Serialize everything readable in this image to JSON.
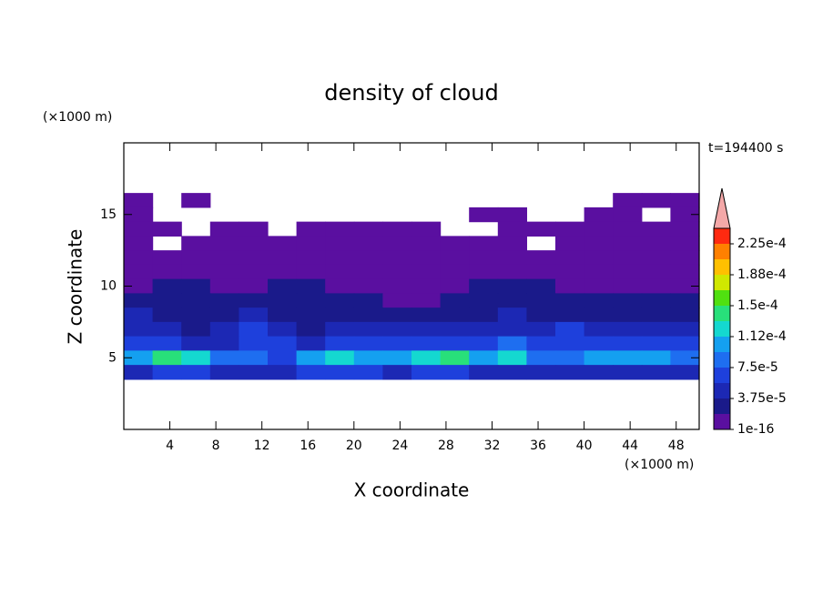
{
  "chart_data": {
    "type": "contour",
    "title": "density of cloud",
    "x_label": "X coordinate",
    "y_label": "Z coordinate",
    "x_unit": "(×1000 m)",
    "y_unit": "(×1000 m)",
    "time_label": "t=194400 s",
    "xlim": [
      0,
      50
    ],
    "ylim": [
      0,
      20
    ],
    "xticks": [
      4,
      8,
      12,
      16,
      20,
      24,
      28,
      32,
      36,
      40,
      44,
      48
    ],
    "yticks": [
      5,
      10,
      15
    ],
    "x": [
      1.25,
      3.75,
      6.25,
      8.75,
      11.25,
      13.75,
      16.25,
      18.75,
      21.25,
      23.75,
      26.25,
      28.75,
      31.25,
      33.75,
      36.25,
      38.75,
      41.25,
      43.75,
      46.25,
      48.75
    ],
    "z": [
      16,
      15,
      14,
      13,
      12,
      11,
      10,
      9,
      8,
      7,
      6,
      5,
      4
    ],
    "values": [
      [
        1e-05,
        null,
        1e-05,
        null,
        null,
        null,
        null,
        null,
        null,
        null,
        null,
        null,
        null,
        null,
        null,
        null,
        null,
        1e-05,
        1e-05,
        1e-05
      ],
      [
        1e-05,
        null,
        null,
        null,
        null,
        null,
        null,
        null,
        null,
        null,
        null,
        null,
        1e-05,
        1e-05,
        null,
        null,
        1e-05,
        1e-05,
        null,
        1e-05
      ],
      [
        1e-05,
        1e-05,
        null,
        1e-05,
        1e-05,
        null,
        1e-05,
        1e-05,
        1e-05,
        1e-05,
        1e-05,
        null,
        null,
        1e-05,
        1e-05,
        1e-05,
        1e-05,
        1e-05,
        1e-05,
        1e-05
      ],
      [
        1e-05,
        null,
        1e-05,
        1e-05,
        1e-05,
        1e-05,
        1e-05,
        1e-05,
        1e-05,
        1e-05,
        1e-05,
        1e-05,
        1e-05,
        1e-05,
        null,
        1e-05,
        1e-05,
        1e-05,
        1e-05,
        1e-05
      ],
      [
        1e-05,
        1e-05,
        1e-05,
        1e-05,
        1e-05,
        1e-05,
        1e-05,
        1e-05,
        1e-05,
        1e-05,
        1e-05,
        1e-05,
        1e-05,
        1e-05,
        1e-05,
        1e-05,
        1e-05,
        1e-05,
        1e-05,
        1e-05
      ],
      [
        1e-05,
        1e-05,
        1e-05,
        1e-05,
        1e-05,
        1e-05,
        1e-05,
        1e-05,
        1e-05,
        1e-05,
        1e-05,
        1e-05,
        1e-05,
        1e-05,
        1e-05,
        1e-05,
        1e-05,
        1e-05,
        1e-05,
        1e-05
      ],
      [
        1e-05,
        3e-05,
        3e-05,
        1e-05,
        1e-05,
        3e-05,
        3e-05,
        1e-05,
        1e-05,
        1e-05,
        1e-05,
        1e-05,
        3e-05,
        3e-05,
        3e-05,
        1e-05,
        1e-05,
        1e-05,
        1e-05,
        1e-05
      ],
      [
        3e-05,
        3e-05,
        3e-05,
        3e-05,
        3e-05,
        3e-05,
        3e-05,
        3e-05,
        3e-05,
        1e-05,
        1e-05,
        3e-05,
        3e-05,
        3e-05,
        3e-05,
        3e-05,
        3e-05,
        3e-05,
        3e-05,
        3e-05
      ],
      [
        5e-05,
        3e-05,
        3e-05,
        3e-05,
        5e-05,
        3e-05,
        3e-05,
        3e-05,
        3e-05,
        3e-05,
        3e-05,
        3e-05,
        3e-05,
        5e-05,
        3e-05,
        3e-05,
        3e-05,
        3e-05,
        3e-05,
        3e-05
      ],
      [
        5e-05,
        5e-05,
        3e-05,
        5e-05,
        7e-05,
        5e-05,
        3e-05,
        5e-05,
        5e-05,
        5e-05,
        5e-05,
        5e-05,
        5e-05,
        5e-05,
        5e-05,
        7e-05,
        5e-05,
        5e-05,
        5e-05,
        5e-05
      ],
      [
        7e-05,
        7e-05,
        5e-05,
        5e-05,
        7e-05,
        7e-05,
        5e-05,
        7e-05,
        7e-05,
        7e-05,
        7e-05,
        7e-05,
        7e-05,
        9e-05,
        7e-05,
        7e-05,
        7e-05,
        7e-05,
        7e-05,
        7e-05
      ],
      [
        0.000105,
        0.000145,
        0.000125,
        9e-05,
        9e-05,
        7e-05,
        0.000105,
        0.000125,
        0.000105,
        0.000105,
        0.000125,
        0.000145,
        0.000105,
        0.000125,
        9e-05,
        9e-05,
        0.000105,
        0.000105,
        0.000105,
        9e-05
      ],
      [
        5e-05,
        7e-05,
        7e-05,
        5e-05,
        5e-05,
        5e-05,
        7e-05,
        7e-05,
        7e-05,
        5e-05,
        7e-05,
        7e-05,
        5e-05,
        5e-05,
        5e-05,
        5e-05,
        5e-05,
        5e-05,
        5e-05,
        5e-05
      ]
    ],
    "levels": [
      1e-16,
      1.875e-05,
      3.75e-05,
      5.625e-05,
      7.5e-05,
      9.375e-05,
      0.0001125,
      0.00013125,
      0.00015,
      0.00016875,
      0.0001875,
      0.00020625,
      0.000225,
      0.00024375
    ],
    "colors": [
      "#5a0fa0",
      "#1a1a8a",
      "#1c28b4",
      "#1e40dc",
      "#1e6ef0",
      "#14a0f0",
      "#14d8d0",
      "#28e07a",
      "#50e010",
      "#d0e800",
      "#ffc000",
      "#ff8000",
      "#ff2a10"
    ],
    "extend_color": "#f4a8a8",
    "cbar_ticks": [
      1e-16,
      {
        "value": 3.75e-05,
        "label": "3.75e-5"
      },
      {
        "value": 7.5e-05,
        "label": "7.5e-5"
      },
      {
        "value": 0.0001125,
        "label": "1.12e-4"
      },
      {
        "value": 0.00015,
        "label": "1.5e-4"
      },
      {
        "value": 0.0001875,
        "label": "1.88e-4"
      },
      {
        "value": 0.000225,
        "label": "2.25e-4"
      }
    ]
  }
}
